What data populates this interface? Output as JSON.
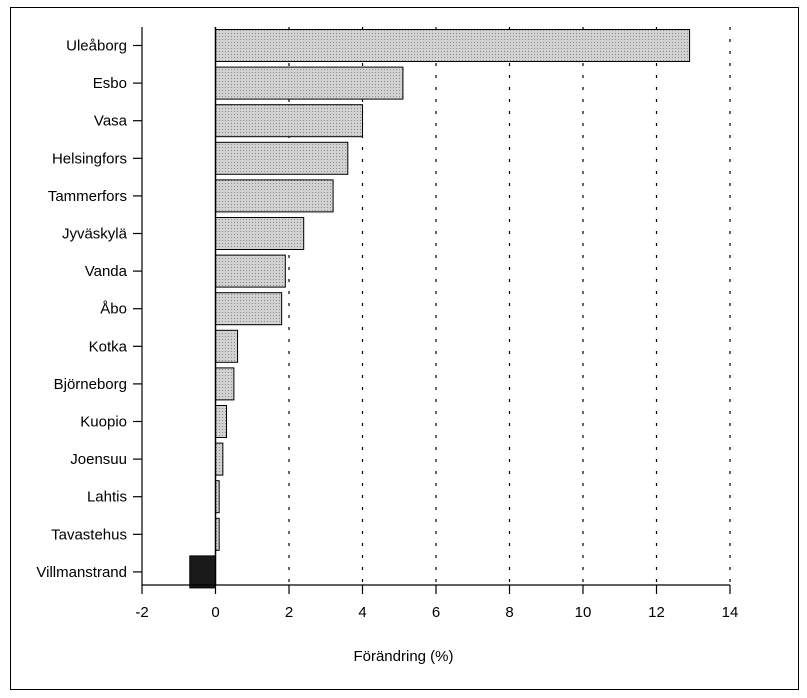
{
  "chart_data": {
    "type": "bar",
    "orientation": "horizontal",
    "categories": [
      "Uleåborg",
      "Esbo",
      "Vasa",
      "Helsingfors",
      "Tammerfors",
      "Jyväskylä",
      "Vanda",
      "Åbo",
      "Kotka",
      "Björneborg",
      "Kuopio",
      "Joensuu",
      "Lahtis",
      "Tavastehus",
      "Villmanstrand"
    ],
    "values": [
      12.9,
      5.1,
      4.0,
      3.6,
      3.2,
      2.4,
      1.9,
      1.8,
      0.6,
      0.5,
      0.3,
      0.2,
      0.1,
      0.1,
      -0.7
    ],
    "xlabel": "Förändring (%)",
    "xlim": [
      -2,
      14
    ],
    "xticks": [
      "-2",
      "0",
      "2",
      "4",
      "6",
      "8",
      "10",
      "12",
      "14"
    ],
    "grid": "vertical dotted",
    "colors": {
      "positive_fill": "#c9c9c9",
      "negative_fill": "#1a1a1a",
      "bar_stroke": "#000000",
      "grid": "#000000"
    }
  }
}
